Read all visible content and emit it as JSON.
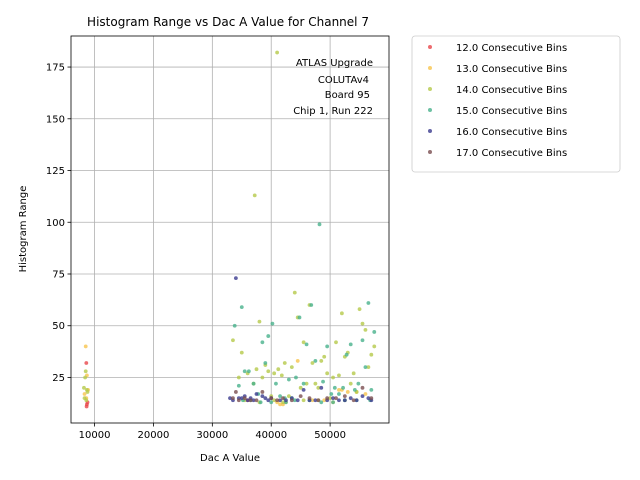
{
  "chart_data": {
    "type": "scatter",
    "title": "Histogram Range vs Dac A Value for Channel 7",
    "xlabel": "Dac A Value",
    "ylabel": "Histogram Range",
    "xlim": [
      6000,
      60000
    ],
    "ylim": [
      3,
      190
    ],
    "xticks": [
      10000,
      20000,
      30000,
      40000,
      50000
    ],
    "yticks": [
      25,
      50,
      75,
      100,
      125,
      150,
      175
    ],
    "grid": true,
    "legend_position": "outside-right",
    "annotation": [
      "ATLAS Upgrade",
      "COLUTAv4",
      "Board 95",
      "Chip 1, Run 222"
    ],
    "series": [
      {
        "name": "12.0 Consecutive Bins",
        "color": "#e8474b",
        "x": [
          8600,
          8700,
          8650,
          8800,
          36000
        ],
        "y": [
          32,
          12,
          11,
          13,
          14
        ]
      },
      {
        "name": "13.0 Consecutive Bins",
        "color": "#f8c44e",
        "x": [
          8500,
          8700,
          8900,
          8300,
          8600,
          41000,
          41500,
          42000,
          42500,
          44500,
          47000,
          49000,
          50500,
          51500,
          52000,
          53000,
          54500,
          56000
        ],
        "y": [
          40,
          26,
          19,
          17,
          15,
          13,
          12,
          12,
          13,
          33,
          14,
          14,
          13,
          19,
          19,
          18,
          18,
          17
        ]
      },
      {
        "name": "14.0 Consecutive Bins",
        "color": "#b5c94a",
        "x": [
          8200,
          8500,
          8400,
          8700,
          8800,
          8300,
          8600,
          33500,
          34500,
          35000,
          36000,
          37000,
          37200,
          37500,
          38000,
          38500,
          39000,
          39500,
          40000,
          40500,
          41000,
          41200,
          41800,
          42000,
          42300,
          43000,
          43500,
          44000,
          44500,
          45000,
          45500,
          46000,
          46500,
          47000,
          47500,
          48000,
          48500,
          49000,
          49500,
          50000,
          50500,
          51000,
          51500,
          52000,
          52500,
          53000,
          53500,
          54000,
          54500,
          55000,
          55500,
          56000,
          56500,
          57000,
          57500,
          35500,
          38000,
          40500,
          45500,
          48000,
          52500
        ],
        "y": [
          20,
          28,
          25,
          19,
          18,
          15,
          14,
          43,
          25,
          37,
          27,
          22,
          113,
          29,
          52,
          25,
          31,
          28,
          16,
          27,
          182,
          29,
          26,
          13,
          32,
          16,
          30,
          66,
          54,
          20,
          42,
          22,
          60,
          32,
          22,
          20,
          33,
          35,
          27,
          15,
          25,
          42,
          26,
          56,
          35,
          37,
          22,
          27,
          18,
          58,
          51,
          48,
          30,
          36,
          40,
          14,
          13,
          14,
          14,
          14,
          14
        ]
      },
      {
        "name": "15.0 Consecutive Bins",
        "color": "#48b28c",
        "x": [
          33800,
          34500,
          35000,
          35500,
          36200,
          37000,
          37800,
          38500,
          39000,
          39500,
          40200,
          40800,
          41500,
          42300,
          43000,
          43500,
          44200,
          44800,
          45500,
          46000,
          46800,
          47500,
          48200,
          48800,
          49500,
          50200,
          50800,
          51500,
          52200,
          52800,
          53500,
          54200,
          54800,
          55500,
          56000,
          56500,
          57000,
          57500,
          35200,
          36500,
          38200,
          40000,
          42500,
          44000,
          46500,
          48500,
          50500,
          52500,
          54500,
          56800
        ],
        "y": [
          50,
          21,
          59,
          28,
          28,
          22,
          17,
          42,
          32,
          45,
          51,
          22,
          16,
          15,
          24,
          15,
          25,
          54,
          22,
          41,
          60,
          33,
          99,
          23,
          40,
          17,
          20,
          17,
          20,
          36,
          41,
          19,
          22,
          43,
          30,
          61,
          19,
          47,
          14,
          14,
          13,
          13,
          13,
          14,
          14,
          13,
          13,
          14,
          14,
          14
        ]
      },
      {
        "name": "16.0 Consecutive Bins",
        "color": "#3b3b8f",
        "x": [
          33000,
          33500,
          34000,
          34500,
          35000,
          35500,
          36000,
          36500,
          37000,
          37500,
          38500,
          39000,
          39500,
          40000,
          41500,
          42500,
          43500,
          44500,
          45500,
          46500,
          47500,
          48500,
          49500,
          50500,
          51500,
          52500,
          53500,
          54500,
          55500,
          56500,
          57000
        ],
        "y": [
          15,
          14,
          73,
          15,
          15,
          16,
          14,
          15,
          14,
          17,
          16,
          15,
          14,
          15,
          14,
          14,
          15,
          14,
          19,
          14,
          14,
          20,
          14,
          15,
          14,
          14,
          15,
          14,
          16,
          15,
          14
        ]
      },
      {
        "name": "17.0 Consecutive Bins",
        "color": "#7a4e50",
        "x": [
          33500,
          34000,
          34500,
          35500,
          36500,
          37500,
          38500,
          40000,
          41000,
          42000,
          43500,
          45000,
          46500,
          48000,
          49500,
          51000,
          52500,
          54000,
          55500,
          57000
        ],
        "y": [
          15,
          18,
          14,
          15,
          14,
          14,
          18,
          15,
          14,
          15,
          14,
          16,
          15,
          14,
          15,
          15,
          16,
          14,
          20,
          15
        ]
      }
    ]
  }
}
